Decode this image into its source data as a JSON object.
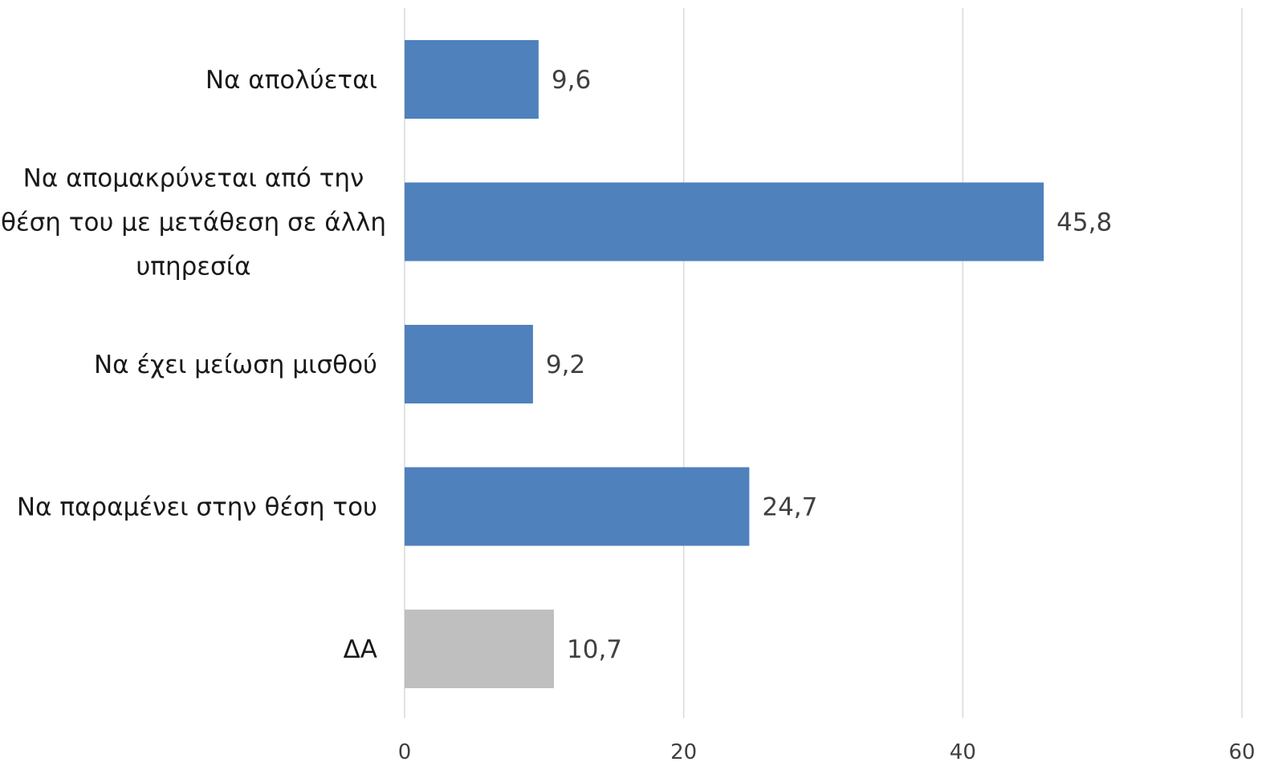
{
  "chart_data": {
    "type": "bar",
    "orientation": "horizontal",
    "title": "",
    "xlabel": "",
    "ylabel": "",
    "categories": [
      "Να απολύεται",
      "Να απομακρύνεται από την θέση του με μετάθεση σε άλλη υπηρεσία",
      "Να έχει μείωση μισθού",
      "Να παραμένει στην θέση του",
      "ΔΑ"
    ],
    "category_lines": [
      [
        "Να απολύεται"
      ],
      [
        "Να απομακρύνεται από την",
        "θέση του με μετάθεση σε άλλη",
        "υπηρεσία"
      ],
      [
        "Να έχει μείωση μισθού"
      ],
      [
        "Να παραμένει στην θέση του"
      ],
      [
        "ΔΑ"
      ]
    ],
    "values": [
      9.6,
      45.8,
      9.2,
      24.7,
      10.7
    ],
    "value_labels": [
      "9,6",
      "45,8",
      "9,2",
      "24,7",
      "10,7"
    ],
    "bar_colors": [
      "#4f81bd",
      "#4f81bd",
      "#4f81bd",
      "#4f81bd",
      "#bfbfbf"
    ],
    "xlim": [
      0,
      60
    ],
    "x_ticks": [
      0,
      20,
      40,
      60
    ],
    "x_tick_labels": [
      "0",
      "20",
      "40",
      "60"
    ],
    "grid": true,
    "legend": "none"
  }
}
